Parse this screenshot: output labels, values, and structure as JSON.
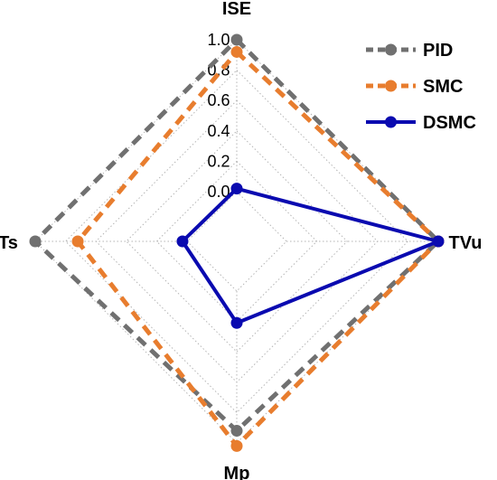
{
  "chart_data": {
    "type": "radar",
    "axes": [
      "ISE",
      "TVu",
      "Mp",
      "Ts"
    ],
    "range": [
      0,
      1.0
    ],
    "ticks": [
      "0.0",
      "0.2",
      "0.4",
      "0.6",
      "0.8",
      "1.0"
    ],
    "grid": true,
    "legend_position": "top-right",
    "series": [
      {
        "name": "PID",
        "values": [
          1.0,
          1.0,
          0.92,
          1.0
        ],
        "color": "#707070",
        "line": "dashed"
      },
      {
        "name": "SMC",
        "values": [
          0.92,
          1.0,
          1.02,
          0.72
        ],
        "color": "#e87d2e",
        "line": "dashed"
      },
      {
        "name": "DSMC",
        "values": [
          0.02,
          1.0,
          0.21,
          0.03
        ],
        "color": "#0a0ab0",
        "line": "solid"
      }
    ]
  }
}
